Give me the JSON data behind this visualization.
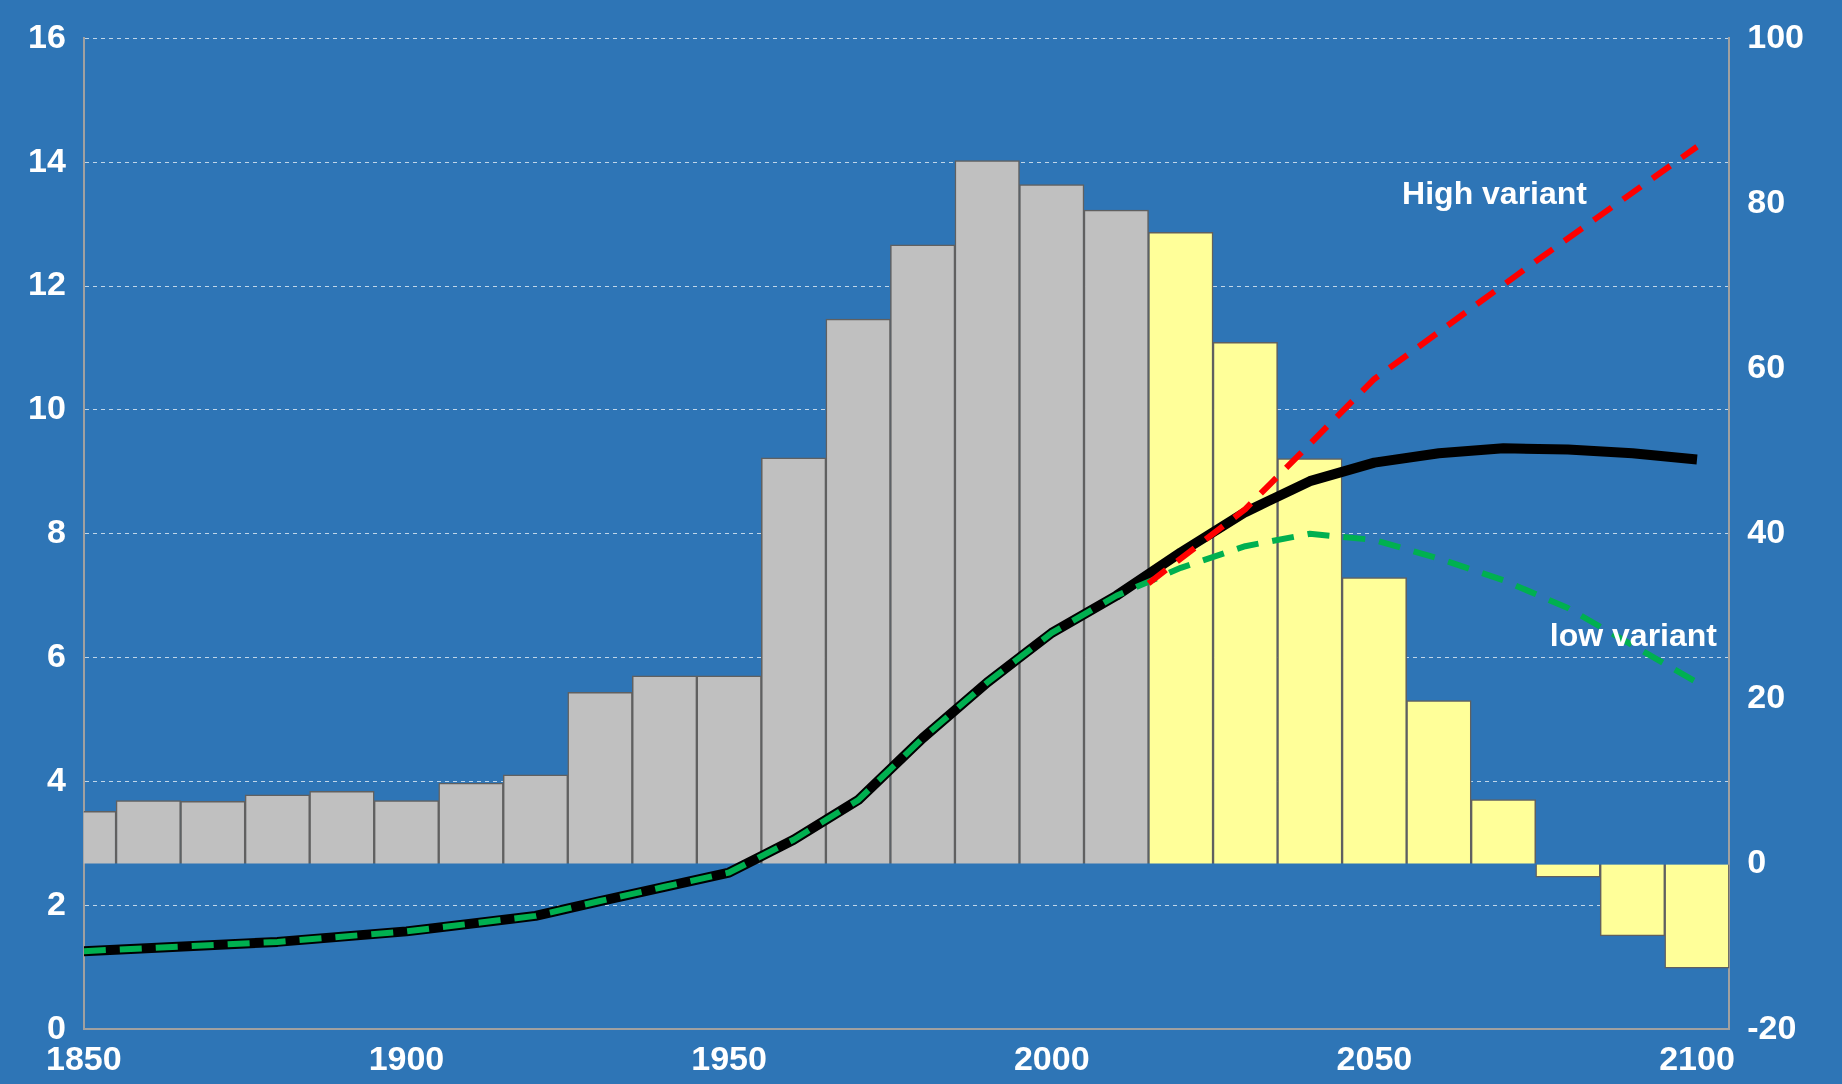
{
  "chart_data": {
    "type": "bar",
    "xlim": [
      1850,
      2105
    ],
    "xticks": [
      1850,
      1900,
      1950,
      2000,
      2050,
      2100
    ],
    "ylim": [
      0,
      16
    ],
    "yticks": [
      0,
      2,
      4,
      6,
      8,
      10,
      12,
      14,
      16
    ],
    "y2lim": [
      -20,
      100
    ],
    "y2ticks": [
      -20,
      0,
      20,
      40,
      60,
      80,
      100
    ],
    "grid": "y",
    "legend": false,
    "series": [
      {
        "axis": "y2",
        "x": [
          1850,
          1860,
          1870,
          1880,
          1890,
          1900,
          1910,
          1920,
          1930,
          1940,
          1950,
          1960,
          1970,
          1980,
          1990,
          2000,
          2010,
          2020,
          2030,
          2040,
          2050,
          2060,
          2070,
          2080,
          2090,
          2100
        ],
        "values": [
          6.4,
          7.7,
          7.6,
          8.4,
          8.8,
          7.7,
          9.8,
          10.8,
          20.8,
          22.8,
          22.8,
          49.2,
          66.0,
          75.0,
          85.2,
          82.3,
          79.2,
          76.5,
          63.2,
          49.1,
          34.7,
          19.8,
          7.8,
          -1.6,
          -8.7,
          -12.6
        ],
        "colors": [
          "#c0c0c0",
          "#c0c0c0",
          "#c0c0c0",
          "#c0c0c0",
          "#c0c0c0",
          "#c0c0c0",
          "#c0c0c0",
          "#c0c0c0",
          "#c0c0c0",
          "#c0c0c0",
          "#c0c0c0",
          "#c0c0c0",
          "#c0c0c0",
          "#c0c0c0",
          "#c0c0c0",
          "#c0c0c0",
          "#c0c0c0",
          "#ffff99",
          "#ffff99",
          "#ffff99",
          "#ffff99",
          "#ffff99",
          "#ffff99",
          "#ffff99",
          "#ffff99",
          "#ffff99"
        ]
      },
      {
        "type": "line",
        "color": "#000000",
        "line_style": "solid",
        "x": [
          1850,
          1880,
          1900,
          1920,
          1930,
          1940,
          1950,
          1960,
          1970,
          1980,
          1990,
          2000,
          2010,
          2020,
          2030,
          2040,
          2050,
          2060,
          2070,
          2080,
          2090,
          2100
        ],
        "values": [
          1.26,
          1.41,
          1.58,
          1.83,
          2.07,
          2.3,
          2.53,
          3.06,
          3.7,
          4.7,
          5.6,
          6.4,
          7.0,
          7.7,
          8.35,
          8.85,
          9.15,
          9.3,
          9.38,
          9.36,
          9.3,
          9.2
        ]
      },
      {
        "type": "line",
        "name": "High variant",
        "color": "#ff0000",
        "line_style": "dashed",
        "x": [
          2015,
          2030,
          2050,
          2075,
          2100
        ],
        "values": [
          7.2,
          8.4,
          10.5,
          12.4,
          14.25
        ]
      },
      {
        "type": "line",
        "name": "low variant",
        "color": "#00b050",
        "line_style": "dashed",
        "x": [
          1850,
          1880,
          1900,
          1920,
          1930,
          1940,
          1950,
          1960,
          1970,
          1980,
          1990,
          2000,
          2010,
          2020,
          2030,
          2040,
          2050,
          2060,
          2070,
          2080,
          2090,
          2100
        ],
        "values": [
          1.26,
          1.41,
          1.58,
          1.83,
          2.07,
          2.3,
          2.53,
          3.06,
          3.7,
          4.7,
          5.6,
          6.4,
          7.0,
          7.45,
          7.8,
          8.0,
          7.9,
          7.6,
          7.25,
          6.8,
          6.2,
          5.6
        ]
      }
    ]
  }
}
